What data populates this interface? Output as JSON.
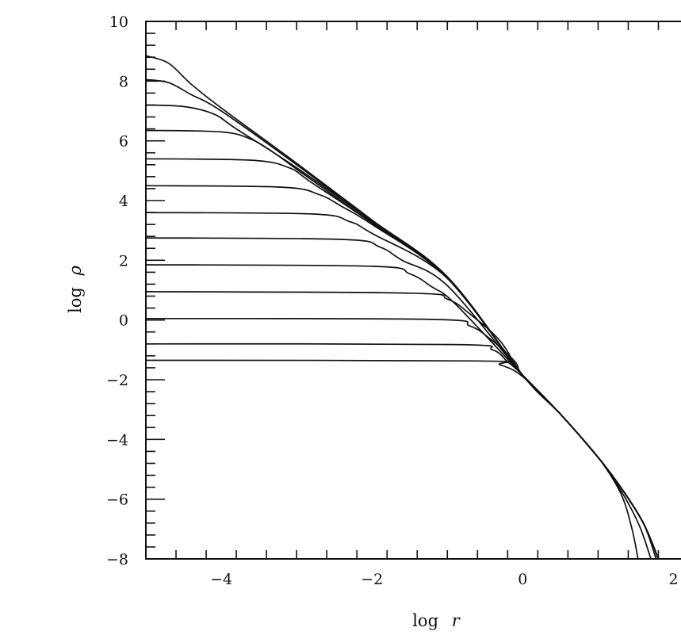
{
  "chart_data": {
    "type": "line",
    "title": "",
    "xlabel": {
      "prefix": "log",
      "var": "r"
    },
    "ylabel": {
      "prefix": "log",
      "var": "ρ"
    },
    "xlim": [
      -5,
      2.1
    ],
    "ylim": [
      -8,
      10
    ],
    "x_major_ticks": [
      -4,
      -2,
      0,
      2
    ],
    "x_tick_labels": [
      "−4",
      "−2",
      "0",
      "2"
    ],
    "x_minor_step": 0.4,
    "y_major_ticks": [
      -8,
      -6,
      -4,
      -2,
      0,
      2,
      4,
      6,
      8,
      10
    ],
    "y_tick_labels": [
      "−8",
      "−6",
      "−4",
      "−2",
      "0",
      "2",
      "4",
      "6",
      "8",
      "10"
    ],
    "y_minor_step": 0.4,
    "grid": false,
    "legend": "none",
    "series": [
      {
        "values": [
          [
            -5.0,
            8.85
          ],
          [
            -4.7,
            8.6
          ],
          [
            -4.4,
            7.9
          ],
          [
            -4.0,
            7.1
          ],
          [
            -3.0,
            5.25
          ],
          [
            -2.0,
            3.35
          ],
          [
            -1.0,
            1.45
          ],
          [
            0.0,
            -1.85
          ],
          [
            0.5,
            -3.15
          ],
          [
            1.0,
            -4.6
          ],
          [
            1.3,
            -5.8
          ],
          [
            1.45,
            -7.0
          ],
          [
            1.53,
            -8.0
          ]
        ]
      },
      {
        "values": [
          [
            -5.0,
            8.05
          ],
          [
            -4.7,
            7.95
          ],
          [
            -4.4,
            7.55
          ],
          [
            -4.0,
            7.0
          ],
          [
            -3.0,
            5.2
          ],
          [
            -2.0,
            3.3
          ],
          [
            -1.0,
            1.4
          ],
          [
            0.0,
            -1.85
          ],
          [
            0.5,
            -3.15
          ],
          [
            1.0,
            -4.6
          ],
          [
            1.3,
            -5.7
          ],
          [
            1.55,
            -6.9
          ],
          [
            1.7,
            -8.0
          ]
        ]
      },
      {
        "values": [
          [
            -5.0,
            7.2
          ],
          [
            -4.5,
            7.15
          ],
          [
            -4.1,
            6.9
          ],
          [
            -3.8,
            6.4
          ],
          [
            -3.0,
            5.1
          ],
          [
            -2.0,
            3.3
          ],
          [
            -1.0,
            1.4
          ],
          [
            0.0,
            -1.85
          ],
          [
            0.5,
            -3.15
          ],
          [
            1.0,
            -4.6
          ],
          [
            1.3,
            -5.6
          ],
          [
            1.6,
            -6.8
          ],
          [
            1.77,
            -8.0
          ]
        ]
      },
      {
        "values": [
          [
            -5.0,
            6.35
          ],
          [
            -4.0,
            6.3
          ],
          [
            -3.6,
            6.05
          ],
          [
            -3.3,
            5.6
          ],
          [
            -3.0,
            5.05
          ],
          [
            -2.0,
            3.25
          ],
          [
            -1.0,
            1.4
          ],
          [
            0.0,
            -1.85
          ],
          [
            0.5,
            -3.15
          ],
          [
            1.0,
            -4.6
          ],
          [
            1.3,
            -5.6
          ],
          [
            1.6,
            -6.8
          ],
          [
            1.8,
            -8.0
          ]
        ]
      },
      {
        "values": [
          [
            -5.0,
            5.4
          ],
          [
            -3.6,
            5.35
          ],
          [
            -3.1,
            5.1
          ],
          [
            -2.8,
            4.6
          ],
          [
            -2.0,
            3.25
          ],
          [
            -1.0,
            1.4
          ],
          [
            0.0,
            -1.85
          ],
          [
            0.5,
            -3.15
          ],
          [
            1.0,
            -4.6
          ],
          [
            1.3,
            -5.6
          ],
          [
            1.6,
            -6.8
          ],
          [
            1.8,
            -8.0
          ]
        ]
      },
      {
        "values": [
          [
            -5.0,
            4.5
          ],
          [
            -3.2,
            4.45
          ],
          [
            -2.7,
            4.2
          ],
          [
            -2.4,
            3.8
          ],
          [
            -2.0,
            3.2
          ],
          [
            -1.0,
            1.4
          ],
          [
            0.0,
            -1.85
          ],
          [
            0.5,
            -3.15
          ],
          [
            1.0,
            -4.6
          ],
          [
            1.3,
            -5.6
          ],
          [
            1.6,
            -6.8
          ],
          [
            1.8,
            -8.0
          ]
        ]
      },
      {
        "values": [
          [
            -5.0,
            3.6
          ],
          [
            -2.8,
            3.55
          ],
          [
            -2.3,
            3.3
          ],
          [
            -2.0,
            2.9
          ],
          [
            -1.0,
            1.4
          ],
          [
            0.0,
            -1.85
          ],
          [
            0.5,
            -3.15
          ],
          [
            1.0,
            -4.6
          ],
          [
            1.3,
            -5.6
          ],
          [
            1.6,
            -6.8
          ],
          [
            1.8,
            -8.0
          ]
        ]
      },
      {
        "values": [
          [
            -5.0,
            2.75
          ],
          [
            -2.4,
            2.7
          ],
          [
            -1.9,
            2.45
          ],
          [
            -1.6,
            2.0
          ],
          [
            -1.0,
            1.15
          ],
          [
            0.0,
            -1.85
          ],
          [
            0.5,
            -3.15
          ],
          [
            1.0,
            -4.6
          ],
          [
            1.3,
            -5.6
          ],
          [
            1.6,
            -6.8
          ],
          [
            1.8,
            -8.0
          ]
        ]
      },
      {
        "values": [
          [
            -5.0,
            1.85
          ],
          [
            -2.0,
            1.8
          ],
          [
            -1.5,
            1.55
          ],
          [
            -1.2,
            1.1
          ],
          [
            -0.9,
            0.55
          ],
          [
            0.0,
            -1.85
          ],
          [
            0.5,
            -3.15
          ],
          [
            1.0,
            -4.6
          ],
          [
            1.3,
            -5.6
          ],
          [
            1.6,
            -6.8
          ],
          [
            1.8,
            -8.0
          ]
        ]
      },
      {
        "values": [
          [
            -5.0,
            0.95
          ],
          [
            -1.5,
            0.9
          ],
          [
            -1.0,
            0.7
          ],
          [
            -0.7,
            0.2
          ],
          [
            -0.3,
            -0.7
          ],
          [
            0.0,
            -1.85
          ],
          [
            0.5,
            -3.15
          ],
          [
            1.0,
            -4.6
          ],
          [
            1.3,
            -5.6
          ],
          [
            1.6,
            -6.8
          ],
          [
            1.8,
            -8.0
          ]
        ]
      },
      {
        "values": [
          [
            -5.0,
            0.05
          ],
          [
            -1.2,
            0.02
          ],
          [
            -0.7,
            -0.2
          ],
          [
            -0.4,
            -0.7
          ],
          [
            -0.1,
            -1.4
          ],
          [
            0.0,
            -1.85
          ],
          [
            0.5,
            -3.15
          ],
          [
            1.0,
            -4.6
          ],
          [
            1.3,
            -5.6
          ],
          [
            1.6,
            -6.8
          ],
          [
            1.8,
            -8.0
          ]
        ]
      },
      {
        "values": [
          [
            -5.0,
            -0.8
          ],
          [
            -0.9,
            -0.82
          ],
          [
            -0.4,
            -1.0
          ],
          [
            -0.2,
            -1.4
          ],
          [
            0.0,
            -1.85
          ],
          [
            0.5,
            -3.15
          ],
          [
            1.0,
            -4.6
          ],
          [
            1.3,
            -5.6
          ],
          [
            1.6,
            -6.8
          ],
          [
            1.8,
            -8.0
          ]
        ]
      },
      {
        "values": [
          [
            -5.0,
            -1.35
          ],
          [
            -0.6,
            -1.37
          ],
          [
            -0.3,
            -1.5
          ],
          [
            0.0,
            -1.9
          ],
          [
            0.5,
            -3.15
          ],
          [
            1.0,
            -4.6
          ],
          [
            1.3,
            -5.6
          ],
          [
            1.6,
            -6.8
          ],
          [
            1.8,
            -8.0
          ]
        ]
      }
    ]
  }
}
